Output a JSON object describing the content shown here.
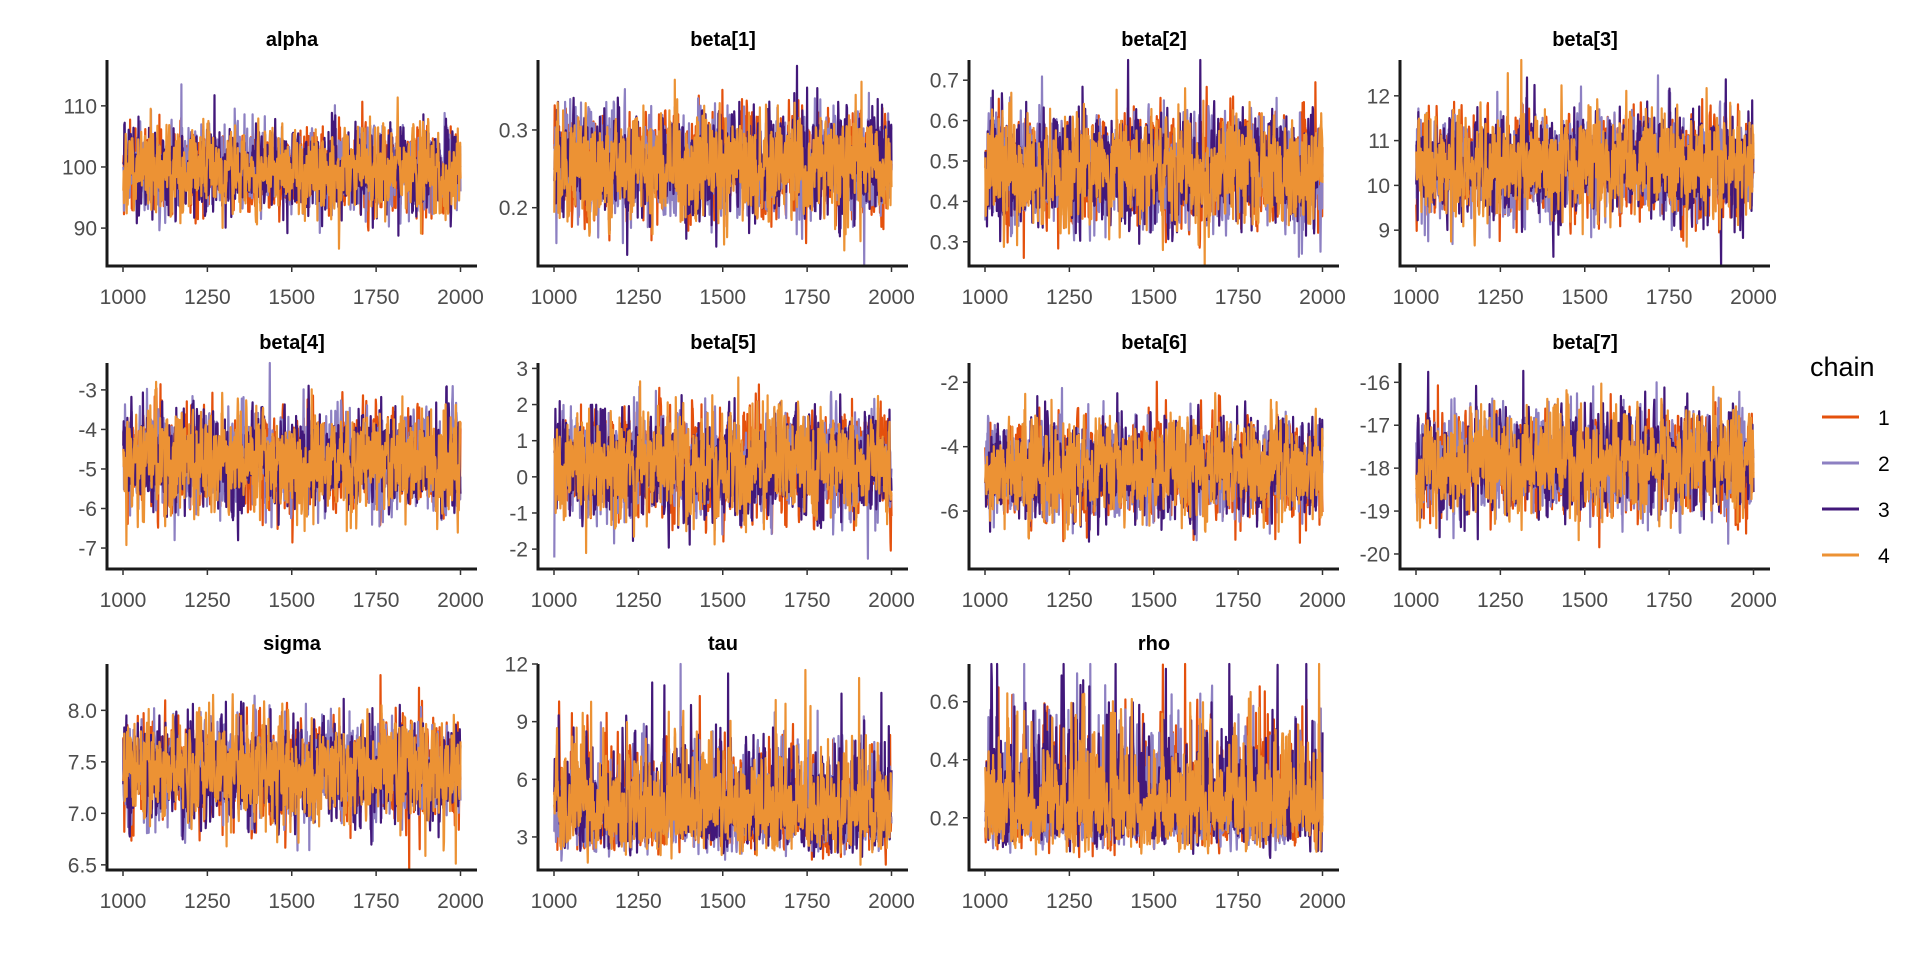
{
  "chart_data": {
    "type": "line",
    "x_range": [
      1000,
      2000
    ],
    "x_ticks": [
      "1000",
      "1250",
      "1500",
      "1750",
      "2000"
    ],
    "legend": {
      "title": "chain",
      "placement": "right",
      "entries": [
        {
          "label": "1",
          "color": "#e4510d"
        },
        {
          "label": "2",
          "color": "#8d80c2"
        },
        {
          "label": "3",
          "color": "#42187a"
        },
        {
          "label": "4",
          "color": "#ec9234"
        }
      ]
    },
    "grid": false,
    "panels": [
      {
        "title": "alpha",
        "ylim": [
          83.8,
          117.5
        ],
        "y_ticks": [
          90,
          100,
          110
        ],
        "y_tick_labels": [
          "90",
          "100",
          "110"
        ],
        "center": 99.5,
        "sd": 3.4,
        "skewed": false
      },
      {
        "title": "beta[1]",
        "ylim": [
          0.125,
          0.39
        ],
        "y_ticks": [
          0.2,
          0.3
        ],
        "y_tick_labels": [
          "0.2",
          "0.3"
        ],
        "center": 0.255,
        "sd": 0.034,
        "skewed": false
      },
      {
        "title": "beta[2]",
        "ylim": [
          0.24,
          0.75
        ],
        "y_ticks": [
          0.3,
          0.4,
          0.5,
          0.6,
          0.7
        ],
        "y_tick_labels": [
          "0.3",
          "0.4",
          "0.5",
          "0.6",
          "0.7"
        ],
        "center": 0.48,
        "sd": 0.068,
        "skewed": false
      },
      {
        "title": "beta[3]",
        "ylim": [
          8.2,
          12.8
        ],
        "y_ticks": [
          9,
          10,
          11,
          12
        ],
        "y_tick_labels": [
          "9",
          "10",
          "11",
          "12"
        ],
        "center": 10.45,
        "sd": 0.58,
        "skewed": false
      },
      {
        "title": "beta[4]",
        "ylim": [
          -7.53,
          -2.32
        ],
        "y_ticks": [
          -7,
          -6,
          -5,
          -4,
          -3
        ],
        "y_tick_labels": [
          "-7",
          "-6",
          "-5",
          "-4",
          "-3"
        ],
        "center": -4.8,
        "sd": 0.62,
        "skewed": false
      },
      {
        "title": "beta[5]",
        "ylim": [
          -2.55,
          3.15
        ],
        "y_ticks": [
          -2,
          -1,
          0,
          1,
          2,
          3
        ],
        "y_tick_labels": [
          "-2",
          "-1",
          "0",
          "1",
          "2",
          "3"
        ],
        "center": 0.3,
        "sd": 0.75,
        "skewed": false
      },
      {
        "title": "beta[6]",
        "ylim": [
          -7.8,
          -1.4
        ],
        "y_ticks": [
          -6,
          -4,
          -2
        ],
        "y_tick_labels": [
          "-6",
          "-4",
          "-2"
        ],
        "center": -4.7,
        "sd": 0.75,
        "skewed": false
      },
      {
        "title": "beta[7]",
        "ylim": [
          -20.35,
          -15.55
        ],
        "y_ticks": [
          -20,
          -19,
          -18,
          -17,
          -16
        ],
        "y_tick_labels": [
          "-20",
          "-19",
          "-18",
          "-17",
          "-16"
        ],
        "center": -17.9,
        "sd": 0.58,
        "skewed": false
      },
      {
        "title": "sigma",
        "ylim": [
          6.45,
          8.45
        ],
        "y_ticks": [
          6.5,
          7.0,
          7.5,
          8.0
        ],
        "y_tick_labels": [
          "6.5",
          "7.0",
          "7.5",
          "8.0"
        ],
        "center": 7.42,
        "sd": 0.24,
        "skewed": false
      },
      {
        "title": "tau",
        "ylim": [
          1.28,
          12.0
        ],
        "y_ticks": [
          3,
          6,
          9,
          12
        ],
        "y_tick_labels": [
          "3",
          "6",
          "9",
          "12"
        ],
        "center": 4.6,
        "sd": 1.4,
        "skewed": true
      },
      {
        "title": "rho",
        "ylim": [
          0.02,
          0.73
        ],
        "y_ticks": [
          0.2,
          0.4,
          0.6
        ],
        "y_tick_labels": [
          "0.2",
          "0.4",
          "0.6"
        ],
        "center": 0.27,
        "sd": 0.11,
        "skewed": true
      }
    ]
  }
}
